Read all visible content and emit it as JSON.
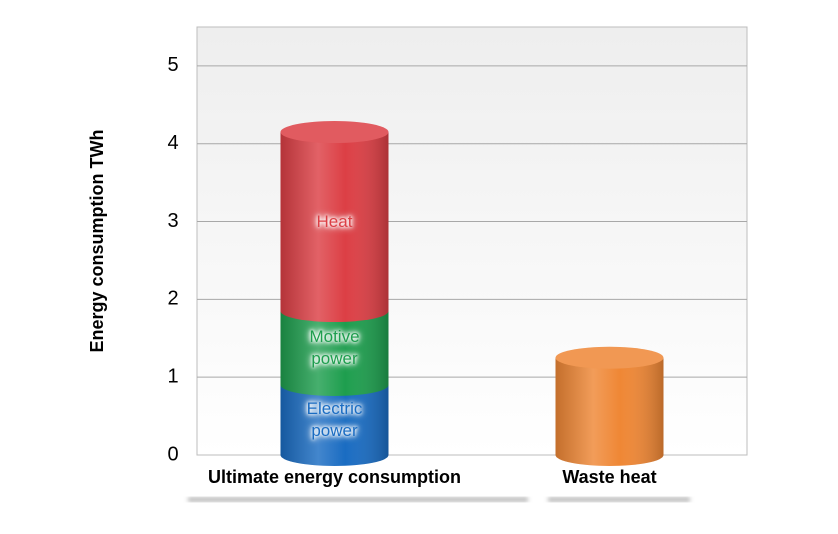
{
  "chart_data": {
    "type": "bar",
    "stacked": true,
    "y_label": "Energy consumption  TWh",
    "categories": [
      "Ultimate energy consumption",
      "Waste heat"
    ],
    "series": [
      {
        "name": "Electric power",
        "color": "#1a6cc2",
        "values": [
          0.9,
          null
        ]
      },
      {
        "name": "Motive power",
        "color": "#1e9e4e",
        "values": [
          0.95,
          null
        ]
      },
      {
        "name": "Heat",
        "color": "#dc3f45",
        "values": [
          2.3,
          null
        ]
      },
      {
        "color": "#ef8735",
        "values": [
          null,
          1.25
        ]
      }
    ],
    "ylim": [
      0,
      5.5
    ],
    "yticks": [
      0,
      1,
      2,
      3,
      4,
      5
    ],
    "grid": true
  }
}
